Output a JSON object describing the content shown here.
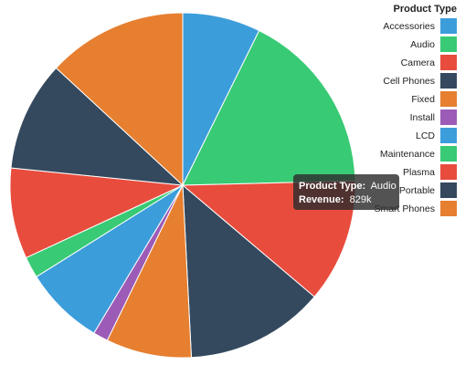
{
  "chart_data": {
    "type": "pie",
    "legend_title": "Product Type",
    "legend_position": "top-right",
    "categories": [
      "Accessories",
      "Audio",
      "Camera",
      "Cell Phones",
      "Fixed",
      "Install",
      "LCD",
      "Maintenance",
      "Plasma",
      "Portable",
      "Smart Phones"
    ],
    "slices": [
      {
        "label": "Accessories",
        "value": 7.3,
        "color": "#3c9ddb"
      },
      {
        "label": "Audio",
        "value": 17.3,
        "color": "#38ca74"
      },
      {
        "label": "Camera",
        "value": 11.6,
        "color": "#e84c3d"
      },
      {
        "label": "Cell Phones",
        "value": 13.0,
        "color": "#34495e"
      },
      {
        "label": "Fixed",
        "value": 8.0,
        "color": "#e67f30"
      },
      {
        "label": "Install",
        "value": 1.4,
        "color": "#9b5bb6"
      },
      {
        "label": "LCD",
        "value": 7.5,
        "color": "#3c9ddb"
      },
      {
        "label": "Maintenance",
        "value": 2.0,
        "color": "#38ca74"
      },
      {
        "label": "Plasma",
        "value": 8.5,
        "color": "#e84c3d"
      },
      {
        "label": "Portable",
        "value": 10.3,
        "color": "#34495e"
      },
      {
        "label": "Smart Phones",
        "value": 13.1,
        "color": "#e67f30"
      }
    ]
  },
  "tooltip": {
    "key1": "Product Type:",
    "val1": "Audio",
    "key2": "Revenue:",
    "val2": "829k"
  }
}
